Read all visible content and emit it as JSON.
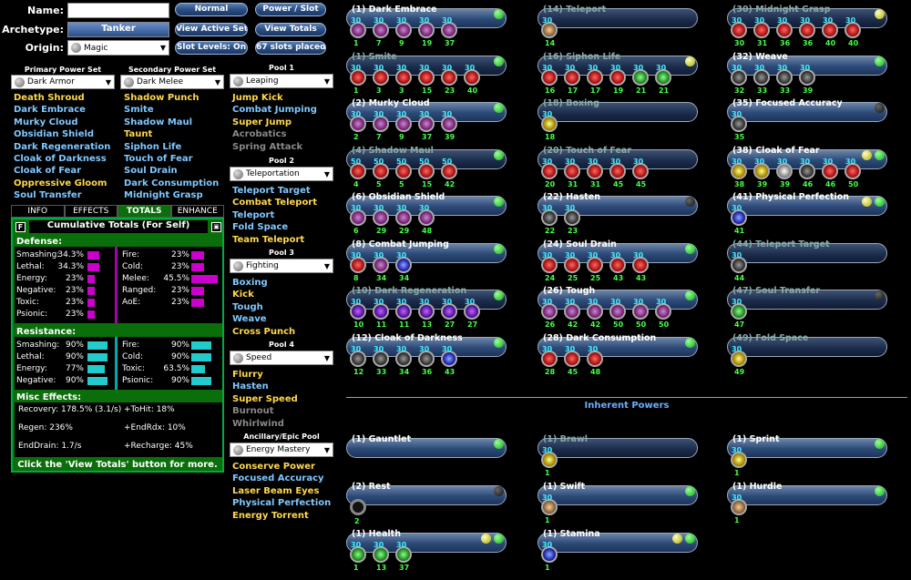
{
  "form": {
    "name_label": "Name:",
    "name_value": "",
    "archetype_label": "Archetype:",
    "archetype_value": "Tanker",
    "origin_label": "Origin:",
    "origin_value": "Magic"
  },
  "buttons": {
    "normal": "Normal",
    "power_slot": "Power / Slot",
    "view_active_sets": "View Active Sets",
    "view_totals": "View Totals",
    "slot_levels": "Slot Levels: On",
    "slots_placed": "67 slots placed"
  },
  "primary": {
    "header": "Primary Power Set",
    "selected": "Dark Armor",
    "items": [
      {
        "t": "Death Shroud",
        "c": "y"
      },
      {
        "t": "Dark Embrace",
        "c": "b"
      },
      {
        "t": "Murky Cloud",
        "c": "b"
      },
      {
        "t": "Obsidian Shield",
        "c": "b"
      },
      {
        "t": "Dark Regeneration",
        "c": "b"
      },
      {
        "t": "Cloak of Darkness",
        "c": "b"
      },
      {
        "t": "Cloak of Fear",
        "c": "b"
      },
      {
        "t": "Oppressive Gloom",
        "c": "y"
      },
      {
        "t": "Soul Transfer",
        "c": "b"
      }
    ]
  },
  "secondary": {
    "header": "Secondary Power Set",
    "selected": "Dark Melee",
    "items": [
      {
        "t": "Shadow Punch",
        "c": "y"
      },
      {
        "t": "Smite",
        "c": "b"
      },
      {
        "t": "Shadow Maul",
        "c": "b"
      },
      {
        "t": "Taunt",
        "c": "y"
      },
      {
        "t": "Siphon Life",
        "c": "b"
      },
      {
        "t": "Touch of Fear",
        "c": "b"
      },
      {
        "t": "Soul Drain",
        "c": "b"
      },
      {
        "t": "Dark Consumption",
        "c": "b"
      },
      {
        "t": "Midnight Grasp",
        "c": "b"
      }
    ]
  },
  "pools": [
    {
      "header": "Pool 1",
      "selected": "Leaping",
      "items": [
        {
          "t": "Jump Kick",
          "c": "y"
        },
        {
          "t": "Combat Jumping",
          "c": "b"
        },
        {
          "t": "Super Jump",
          "c": "y"
        },
        {
          "t": "Acrobatics",
          "c": "g"
        },
        {
          "t": "Spring Attack",
          "c": "g"
        }
      ]
    },
    {
      "header": "Pool 2",
      "selected": "Teleportation",
      "items": [
        {
          "t": "Teleport Target",
          "c": "b"
        },
        {
          "t": "Combat Teleport",
          "c": "y"
        },
        {
          "t": "Teleport",
          "c": "b"
        },
        {
          "t": "Fold Space",
          "c": "b"
        },
        {
          "t": "Team Teleport",
          "c": "y"
        }
      ]
    },
    {
      "header": "Pool 3",
      "selected": "Fighting",
      "items": [
        {
          "t": "Boxing",
          "c": "b"
        },
        {
          "t": "Kick",
          "c": "y"
        },
        {
          "t": "Tough",
          "c": "b"
        },
        {
          "t": "Weave",
          "c": "b"
        },
        {
          "t": "Cross Punch",
          "c": "y"
        }
      ]
    },
    {
      "header": "Pool 4",
      "selected": "Speed",
      "items": [
        {
          "t": "Flurry",
          "c": "y"
        },
        {
          "t": "Hasten",
          "c": "b"
        },
        {
          "t": "Super Speed",
          "c": "y"
        },
        {
          "t": "Burnout",
          "c": "g"
        },
        {
          "t": "Whirlwind",
          "c": "g"
        }
      ]
    },
    {
      "header": "Ancillary/Epic Pool",
      "selected": "Energy Mastery",
      "items": [
        {
          "t": "Conserve Power",
          "c": "y"
        },
        {
          "t": "Focused Accuracy",
          "c": "b"
        },
        {
          "t": "Laser Beam Eyes",
          "c": "y"
        },
        {
          "t": "Physical Perfection",
          "c": "b"
        },
        {
          "t": "Energy Torrent",
          "c": "y"
        }
      ]
    }
  ],
  "tabs": [
    "INFO",
    "EFFECTS",
    "TOTALS",
    "ENHANCE"
  ],
  "totals": {
    "f_btn": "F",
    "title": "Cumulative Totals (For Self)",
    "defense_label": "Defense:",
    "defense_left": [
      [
        "Smashing:",
        "34.3%",
        0.45
      ],
      [
        "Lethal:",
        "34.3%",
        0.45
      ],
      [
        "Energy:",
        "23%",
        0.3
      ],
      [
        "Negative:",
        "23%",
        0.3
      ],
      [
        "Toxic:",
        "23%",
        0.3
      ],
      [
        "Psionic:",
        "23%",
        0.3
      ]
    ],
    "defense_right": [
      [
        "Fire:",
        "23%",
        0.3
      ],
      [
        "Cold:",
        "23%",
        0.3
      ],
      [
        "Melee:",
        "45.5%",
        0.6
      ],
      [
        "Ranged:",
        "23%",
        0.3
      ],
      [
        "AoE:",
        "23%",
        0.3
      ]
    ],
    "resistance_label": "Resistance:",
    "res_left": [
      [
        "Smashing:",
        "90%",
        1.0
      ],
      [
        "Lethal:",
        "90%",
        1.0
      ],
      [
        "Energy:",
        "77%",
        0.86
      ],
      [
        "Negative:",
        "90%",
        1.0
      ]
    ],
    "res_right": [
      [
        "Fire:",
        "90%",
        1.0
      ],
      [
        "Cold:",
        "90%",
        1.0
      ],
      [
        "Toxic:",
        "63.5%",
        0.7
      ],
      [
        "Psionic:",
        "90%",
        1.0
      ]
    ],
    "misc_label": "Misc Effects:",
    "misc": [
      [
        "Recovery: 178.5% (3.1/s)",
        "+ToHit: 18%"
      ],
      [
        "Regen: 236%",
        "+EndRdx: 10%"
      ],
      [
        "EndDrain: 1.7/s",
        "+Recharge: 45%"
      ]
    ],
    "footer": "Click the 'View Totals' button for more."
  },
  "inherent_title": "Inherent Powers",
  "col1": [
    {
      "n": "(1) Dark Embrace",
      "ind": [
        "g1"
      ],
      "e": [
        [
          "30",
          "1",
          "c-pur"
        ],
        [
          "30",
          "7",
          "c-pur"
        ],
        [
          "30",
          "9",
          "c-pur"
        ],
        [
          "30",
          "19",
          "c-pur"
        ],
        [
          "30",
          "37",
          "c-pur"
        ]
      ]
    },
    {
      "n": "(1) Smite",
      "dim": true,
      "ind": [
        "g1"
      ],
      "e": [
        [
          "30",
          "1",
          "c-red"
        ],
        [
          "30",
          "3",
          "c-red"
        ],
        [
          "30",
          "3",
          "c-red"
        ],
        [
          "30",
          "15",
          "c-red"
        ],
        [
          "30",
          "23",
          "c-red"
        ],
        [
          "30",
          "40",
          "c-red"
        ]
      ]
    },
    {
      "n": "(2) Murky Cloud",
      "ind": [
        "g1"
      ],
      "e": [
        [
          "30",
          "2",
          "c-pur"
        ],
        [
          "30",
          "7",
          "c-pur"
        ],
        [
          "30",
          "9",
          "c-pur"
        ],
        [
          "30",
          "37",
          "c-pur"
        ],
        [
          "30",
          "39",
          "c-pur"
        ]
      ]
    },
    {
      "n": "(4) Shadow Maul",
      "dim": true,
      "ind": [
        "g1"
      ],
      "e": [
        [
          "50",
          "4",
          "c-red"
        ],
        [
          "50",
          "5",
          "c-red"
        ],
        [
          "50",
          "5",
          "c-red"
        ],
        [
          "50",
          "15",
          "c-red"
        ],
        [
          "50",
          "42",
          "c-red"
        ]
      ]
    },
    {
      "n": "(6) Obsidian Shield",
      "ind": [
        "g1"
      ],
      "e": [
        [
          "30",
          "6",
          "c-pur"
        ],
        [
          "30",
          "29",
          "c-pur"
        ],
        [
          "30",
          "29",
          "c-pur"
        ],
        [
          "30",
          "48",
          "c-pur"
        ]
      ]
    },
    {
      "n": "(8) Combat Jumping",
      "ind": [
        "g1"
      ],
      "e": [
        [
          "30",
          "8",
          "c-red"
        ],
        [
          "30",
          "34",
          "c-pur"
        ],
        [
          "30",
          "34",
          "c-blu"
        ]
      ]
    },
    {
      "n": "(10) Dark Regeneration",
      "dim": true,
      "ind": [
        "g1"
      ],
      "e": [
        [
          "30",
          "10",
          "c-vio"
        ],
        [
          "30",
          "11",
          "c-vio"
        ],
        [
          "30",
          "11",
          "c-vio"
        ],
        [
          "30",
          "13",
          "c-vio"
        ],
        [
          "30",
          "27",
          "c-vio"
        ],
        [
          "30",
          "27",
          "c-vio"
        ]
      ]
    },
    {
      "n": "(12) Cloak of Darkness",
      "ind": [
        "g1"
      ],
      "e": [
        [
          "30",
          "12",
          "c-dk"
        ],
        [
          "30",
          "33",
          "c-dk"
        ],
        [
          "30",
          "34",
          "c-dk"
        ],
        [
          "30",
          "36",
          "c-dk"
        ],
        [
          "30",
          "43",
          "c-blu"
        ]
      ]
    }
  ],
  "col2": [
    {
      "n": "(14) Teleport",
      "dim": true,
      "ind": [],
      "e": [
        [
          "30",
          "14",
          "c-mix"
        ]
      ]
    },
    {
      "n": "(16) Siphon Life",
      "dim": true,
      "ind": [
        "y1"
      ],
      "e": [
        [
          "30",
          "16",
          "c-red"
        ],
        [
          "30",
          "17",
          "c-red"
        ],
        [
          "30",
          "17",
          "c-red"
        ],
        [
          "30",
          "19",
          "c-red"
        ],
        [
          "30",
          "21",
          "c-grn"
        ],
        [
          "30",
          "21",
          "c-grn"
        ]
      ]
    },
    {
      "n": "(18) Boxing",
      "dim": true,
      "ind": [],
      "e": [
        [
          "30",
          "18",
          "c-yel"
        ]
      ]
    },
    {
      "n": "(20) Touch of Fear",
      "dim": true,
      "ind": [],
      "e": [
        [
          "30",
          "20",
          "c-red"
        ],
        [
          "30",
          "31",
          "c-red"
        ],
        [
          "30",
          "31",
          "c-red"
        ],
        [
          "30",
          "45",
          "c-red"
        ],
        [
          "30",
          "45",
          "c-red"
        ]
      ]
    },
    {
      "n": "(22) Hasten",
      "ind": [
        "k1"
      ],
      "e": [
        [
          "30",
          "22",
          "c-dk"
        ],
        [
          "30",
          "23",
          "c-dk"
        ]
      ]
    },
    {
      "n": "(24) Soul Drain",
      "ind": [
        "g1"
      ],
      "e": [
        [
          "30",
          "24",
          "c-red"
        ],
        [
          "30",
          "25",
          "c-red"
        ],
        [
          "30",
          "25",
          "c-red"
        ],
        [
          "30",
          "43",
          "c-red"
        ],
        [
          "30",
          "43",
          "c-red"
        ]
      ]
    },
    {
      "n": "(26) Tough",
      "ind": [
        "g1"
      ],
      "e": [
        [
          "30",
          "26",
          "c-pur"
        ],
        [
          "30",
          "42",
          "c-pur"
        ],
        [
          "30",
          "42",
          "c-pur"
        ],
        [
          "30",
          "50",
          "c-pur"
        ],
        [
          "30",
          "50",
          "c-pur"
        ],
        [
          "30",
          "50",
          "c-pur"
        ]
      ]
    },
    {
      "n": "(28) Dark Consumption",
      "ind": [
        "g1"
      ],
      "e": [
        [
          "30",
          "28",
          "c-red"
        ],
        [
          "30",
          "45",
          "c-red"
        ],
        [
          "30",
          "48",
          "c-red"
        ]
      ]
    }
  ],
  "col3": [
    {
      "n": "(30) Midnight Grasp",
      "dim": true,
      "ind": [
        "y1"
      ],
      "e": [
        [
          "30",
          "30",
          "c-red"
        ],
        [
          "30",
          "31",
          "c-red"
        ],
        [
          "30",
          "36",
          "c-red"
        ],
        [
          "30",
          "36",
          "c-red"
        ],
        [
          "30",
          "40",
          "c-red"
        ],
        [
          "30",
          "40",
          "c-red"
        ]
      ]
    },
    {
      "n": "(32) Weave",
      "ind": [
        "g1"
      ],
      "e": [
        [
          "30",
          "32",
          "c-dk"
        ],
        [
          "30",
          "33",
          "c-dk"
        ],
        [
          "30",
          "33",
          "c-dk"
        ],
        [
          "30",
          "39",
          "c-dk"
        ]
      ]
    },
    {
      "n": "(35) Focused Accuracy",
      "ind": [
        "k1"
      ],
      "e": [
        [
          "30",
          "35",
          "c-dk"
        ]
      ]
    },
    {
      "n": "(38) Cloak of Fear",
      "ind": [
        "y1",
        "g1"
      ],
      "e": [
        [
          "30",
          "38",
          "c-yel"
        ],
        [
          "30",
          "39",
          "c-yel"
        ],
        [
          "30",
          "39",
          "c-wht"
        ],
        [
          "30",
          "46",
          "c-dk"
        ],
        [
          "30",
          "46",
          "c-red"
        ],
        [
          "30",
          "50",
          "c-red"
        ]
      ]
    },
    {
      "n": "(41) Physical Perfection",
      "ind": [
        "y1",
        "g1"
      ],
      "e": [
        [
          "30",
          "41",
          "c-blu"
        ]
      ]
    },
    {
      "n": "(44) Teleport Target",
      "dim": true,
      "ind": [],
      "e": [
        [
          "30",
          "44",
          "c-dk"
        ]
      ]
    },
    {
      "n": "(47) Soul Transfer",
      "dim": true,
      "ind": [
        "k1"
      ],
      "e": [
        [
          "30",
          "47",
          "c-grn"
        ]
      ]
    },
    {
      "n": "(49) Fold Space",
      "dim": true,
      "ind": [],
      "e": [
        [
          "30",
          "49",
          "c-yel"
        ]
      ]
    }
  ],
  "inherent": [
    {
      "n": "(1) Gauntlet",
      "ind": [
        "g1"
      ],
      "e": [],
      "col": 0,
      "row": 0
    },
    {
      "n": "(1) Brawl",
      "dim": true,
      "ind": [],
      "e": [
        [
          "30",
          "1",
          "c-yel"
        ]
      ],
      "col": 1,
      "row": 0
    },
    {
      "n": "(1) Sprint",
      "ind": [
        "g1"
      ],
      "e": [
        [
          "30",
          "1",
          "c-yel"
        ]
      ],
      "col": 2,
      "row": 0
    },
    {
      "n": "(2) Rest",
      "ind": [
        "k1"
      ],
      "e": [
        [
          "",
          "2",
          "c-ring"
        ]
      ],
      "col": 0,
      "row": 1
    },
    {
      "n": "(1) Swift",
      "ind": [
        "g1"
      ],
      "e": [
        [
          "30",
          "1",
          "c-mix"
        ]
      ],
      "col": 1,
      "row": 1
    },
    {
      "n": "(1) Hurdle",
      "ind": [
        "g1"
      ],
      "e": [
        [
          "30",
          "1",
          "c-mix"
        ]
      ],
      "col": 2,
      "row": 1
    },
    {
      "n": "(1) Health",
      "ind": [
        "y1",
        "g1"
      ],
      "e": [
        [
          "30",
          "1",
          "c-grn"
        ],
        [
          "30",
          "13",
          "c-grn"
        ],
        [
          "30",
          "37",
          "c-grn"
        ]
      ],
      "col": 0,
      "row": 2
    },
    {
      "n": "(1) Stamina",
      "ind": [
        "y1",
        "g1"
      ],
      "e": [
        [
          "30",
          "1",
          "c-blu"
        ]
      ],
      "col": 1,
      "row": 2
    }
  ]
}
